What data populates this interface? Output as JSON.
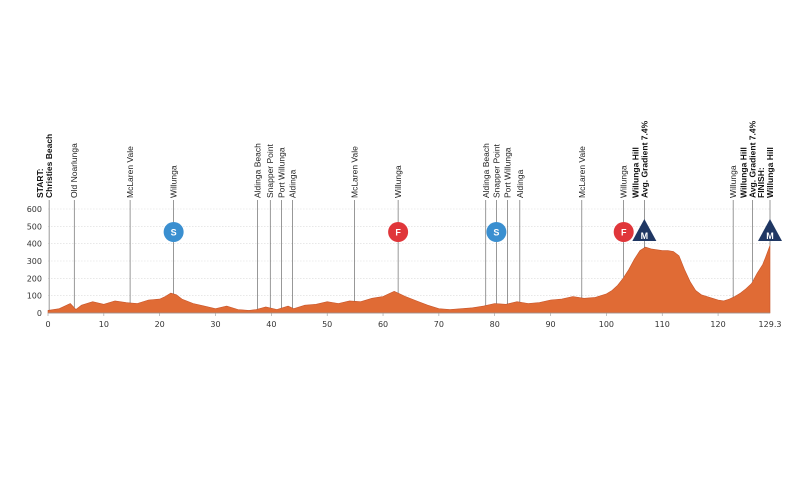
{
  "colors": {
    "profile_fill": "#E06B35",
    "profile_stroke": "#C8552A",
    "grid": "#d9d9d9",
    "axis": "#999999",
    "sprint": "#3A8FD0",
    "feed": "#E0363A",
    "kom": "#1F3763",
    "text": "#222222",
    "band": "#f5f5f5"
  },
  "chart_data": {
    "type": "area",
    "xlim": [
      0,
      129.3
    ],
    "ylim": [
      0,
      600
    ],
    "x_ticks": [
      0,
      10,
      20,
      30,
      40,
      50,
      60,
      70,
      80,
      90,
      100,
      110,
      120
    ],
    "x_end_label": "129.3",
    "y_ticks": [
      0,
      100,
      200,
      300,
      400,
      500,
      600
    ],
    "x": [
      0,
      2,
      4,
      5,
      6,
      8,
      10,
      12,
      14,
      16,
      18,
      20,
      21,
      22,
      23,
      24,
      26,
      28,
      30,
      32,
      34,
      36,
      37.3,
      39,
      41,
      43,
      44,
      46,
      48,
      50,
      52,
      54,
      56,
      58,
      60,
      61,
      62,
      63,
      64,
      66,
      68,
      70,
      72,
      74,
      76,
      78,
      80,
      82,
      84,
      86,
      88,
      90,
      92,
      94,
      96,
      98,
      100,
      101,
      102,
      103,
      104,
      105,
      106,
      107,
      108,
      110,
      111,
      112,
      113,
      114,
      115,
      116,
      117,
      118,
      119,
      120,
      121,
      122,
      123,
      124,
      125,
      126,
      127,
      128,
      128.5,
      129.3
    ],
    "elevation": [
      15,
      25,
      55,
      20,
      45,
      65,
      50,
      70,
      60,
      55,
      75,
      80,
      95,
      115,
      105,
      80,
      55,
      40,
      25,
      40,
      20,
      15,
      20,
      35,
      20,
      40,
      25,
      45,
      50,
      65,
      55,
      70,
      65,
      85,
      95,
      110,
      125,
      110,
      95,
      70,
      45,
      25,
      20,
      25,
      30,
      40,
      55,
      50,
      65,
      55,
      60,
      75,
      80,
      95,
      85,
      90,
      110,
      130,
      160,
      200,
      250,
      310,
      360,
      380,
      370,
      360,
      360,
      355,
      330,
      250,
      180,
      130,
      105,
      95,
      85,
      75,
      70,
      80,
      95,
      115,
      140,
      170,
      230,
      280,
      320,
      390
    ],
    "waypoints": [
      {
        "km": 0.2,
        "lines": [
          "START:",
          "Christies Beach"
        ],
        "bold": true
      },
      {
        "km": 4.7,
        "lines": [
          "Old Noarlunga"
        ],
        "bold": false
      },
      {
        "km": 14.7,
        "lines": [
          "McLaren Vale"
        ],
        "bold": false
      },
      {
        "km": 22.5,
        "lines": [
          "Willunga"
        ],
        "bold": false
      },
      {
        "km": 37.5,
        "lines": [
          "Aldinga Beach"
        ],
        "bold": false
      },
      {
        "km": 39.8,
        "lines": [
          "Snapper Point"
        ],
        "bold": false
      },
      {
        "km": 41.8,
        "lines": [
          "Port Willunga"
        ],
        "bold": false
      },
      {
        "km": 43.8,
        "lines": [
          "Aldinga"
        ],
        "bold": false
      },
      {
        "km": 54.9,
        "lines": [
          "McLaren Vale"
        ],
        "bold": false
      },
      {
        "km": 62.7,
        "lines": [
          "Willunga"
        ],
        "bold": false
      },
      {
        "km": 78.4,
        "lines": [
          "Aldinga Beach"
        ],
        "bold": false
      },
      {
        "km": 80.3,
        "lines": [
          "Snapper Point"
        ],
        "bold": false
      },
      {
        "km": 82.3,
        "lines": [
          "Port Willunga"
        ],
        "bold": false
      },
      {
        "km": 84.5,
        "lines": [
          "Aldinga"
        ],
        "bold": false
      },
      {
        "km": 95.6,
        "lines": [
          "McLaren Vale"
        ],
        "bold": false
      },
      {
        "km": 103.1,
        "lines": [
          "Willunga"
        ],
        "bold": false
      },
      {
        "km": 106.8,
        "lines": [
          "Willunga Hill",
          "Avg. Gradient 7.4%"
        ],
        "bold": true
      },
      {
        "km": 122.7,
        "lines": [
          "Willunga"
        ],
        "bold": false
      },
      {
        "km": 126.2,
        "lines": [
          "Willunga Hill",
          "Avg. Gradient 7.4%"
        ],
        "bold": true
      },
      {
        "km": 129.3,
        "lines": [
          "FINISH:",
          "Willunga Hill"
        ],
        "bold": true
      }
    ],
    "markers": [
      {
        "km": 22.5,
        "type": "sprint",
        "letter": "S"
      },
      {
        "km": 62.7,
        "type": "feed",
        "letter": "F"
      },
      {
        "km": 80.3,
        "type": "sprint",
        "letter": "S"
      },
      {
        "km": 103.1,
        "type": "feed",
        "letter": "F"
      },
      {
        "km": 106.8,
        "type": "kom",
        "letter": "M"
      },
      {
        "km": 129.3,
        "type": "kom",
        "letter": "M"
      }
    ]
  }
}
